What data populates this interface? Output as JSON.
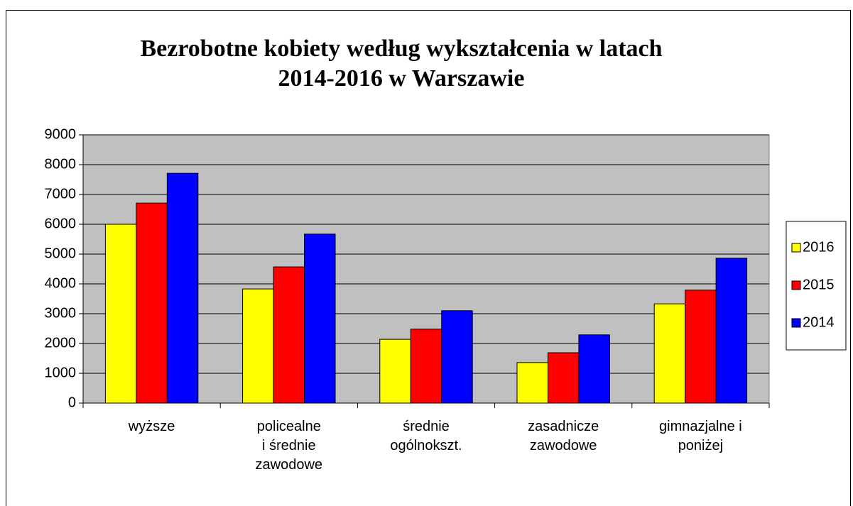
{
  "chart_data": {
    "type": "bar",
    "title": "Bezrobotne kobiety według wykształcenia w latach\n2014-2016  w Warszawie",
    "categories": [
      "wyższe",
      "policealne\ni średnie\nzawodowe",
      "średnie\nogólnokszt.",
      "zasadnicze\nzawodowe",
      "gimnazjalne i\nponiżej"
    ],
    "series": [
      {
        "name": "2016",
        "color": "#ffff00",
        "values": [
          6000,
          3830,
          2140,
          1360,
          3330
        ]
      },
      {
        "name": "2015",
        "color": "#ff0000",
        "values": [
          6710,
          4570,
          2480,
          1690,
          3790
        ]
      },
      {
        "name": "2014",
        "color": "#0000ff",
        "values": [
          7710,
          5670,
          3100,
          2290,
          4860
        ]
      }
    ],
    "ylim": [
      0,
      9000
    ],
    "yticks": [
      0,
      1000,
      2000,
      3000,
      4000,
      5000,
      6000,
      7000,
      8000,
      9000
    ],
    "grid": true,
    "legend": "right",
    "plot_background": "#c0c0c0"
  }
}
